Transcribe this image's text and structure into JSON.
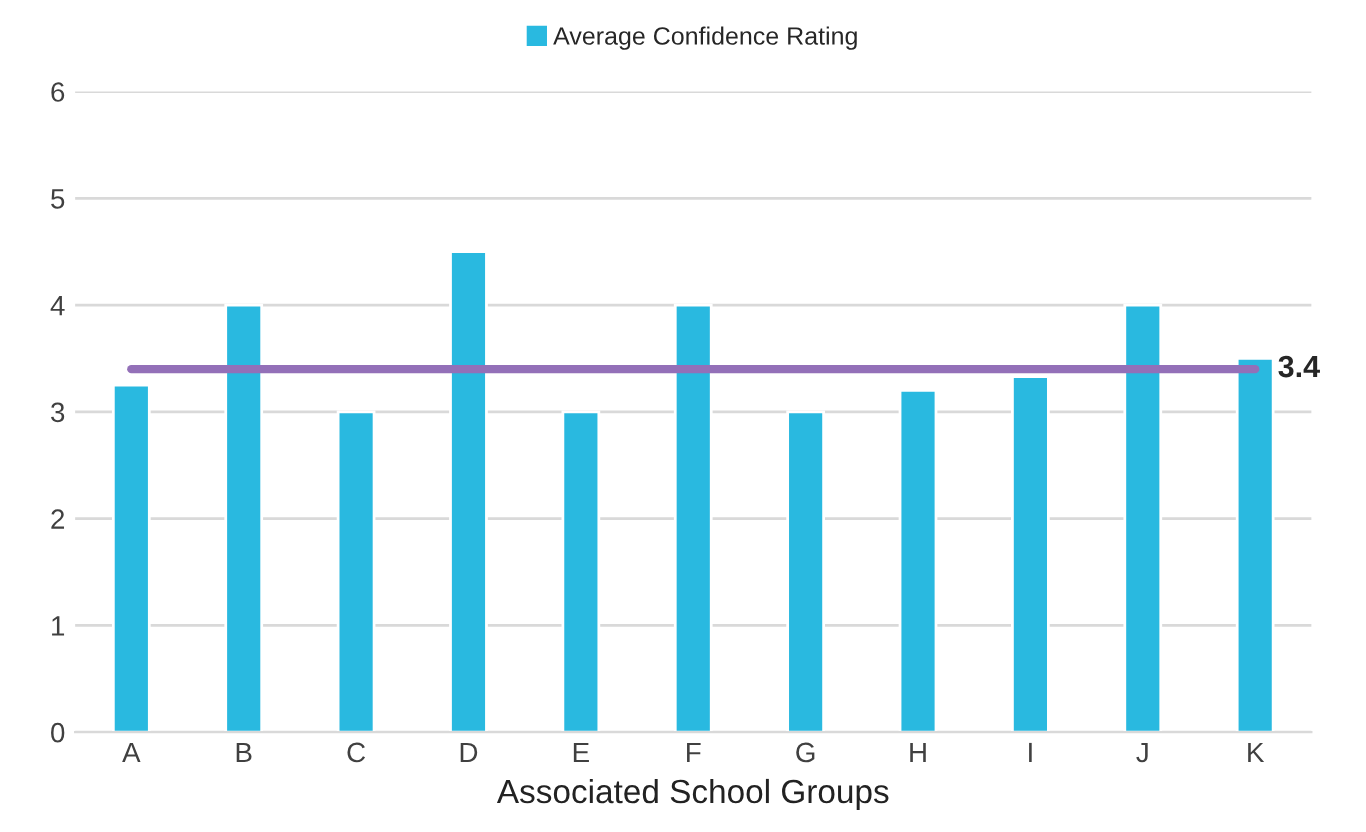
{
  "chart_data": {
    "type": "bar",
    "xlabel": "Associated School Groups",
    "categories": [
      "A",
      "B",
      "C",
      "D",
      "E",
      "F",
      "G",
      "H",
      "I",
      "J",
      "K"
    ],
    "series": [
      {
        "name": "Average Confidence Rating",
        "color": "#29b9e0",
        "values": [
          3.25,
          4,
          3,
          4.5,
          3,
          4,
          3,
          3.2,
          3.33,
          4,
          3.5
        ]
      }
    ],
    "ylim": [
      0,
      6
    ],
    "yticks": [
      0,
      1,
      2,
      3,
      4,
      5,
      6
    ],
    "grid": "y",
    "legend": "top",
    "ref_lines": [
      {
        "axis": "y",
        "value": 3.4,
        "label": "3.4",
        "color": "#9370b8"
      }
    ]
  }
}
